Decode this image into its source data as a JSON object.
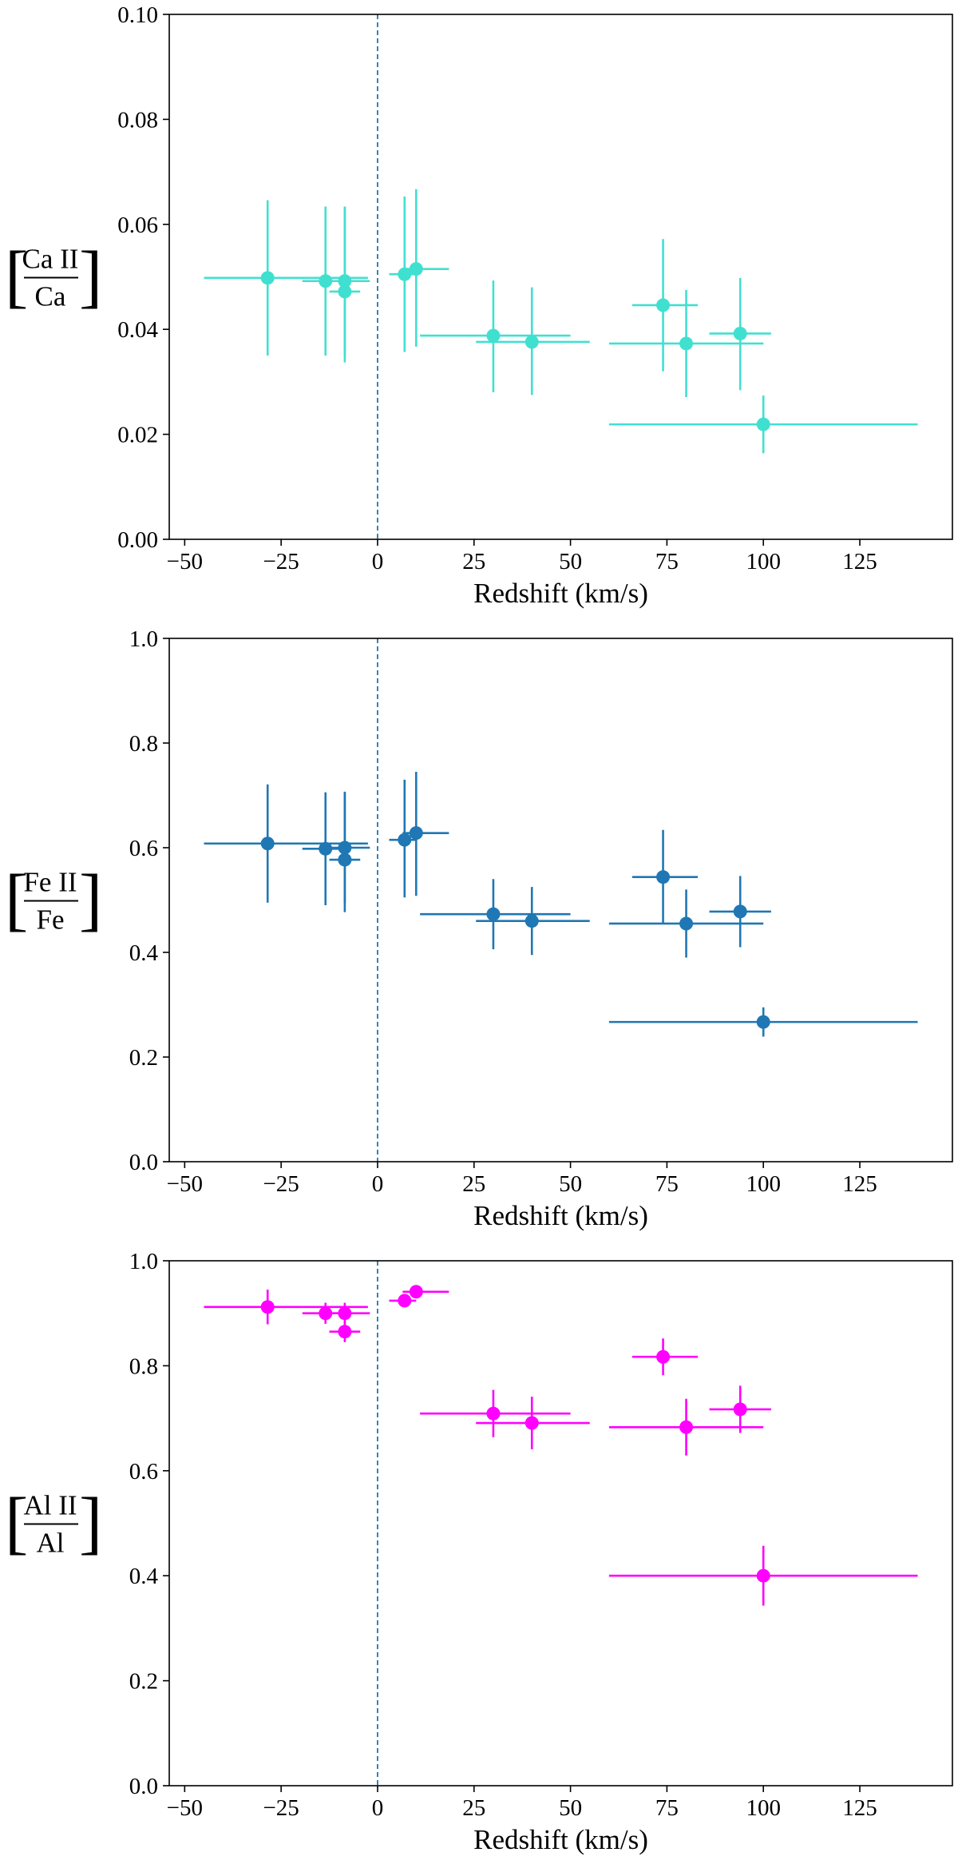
{
  "chart_data": [
    {
      "type": "scatter",
      "style": "errorbar",
      "color": "#40E0D0",
      "xlabel": "Redshift (km/s)",
      "ylabel": {
        "bracket_left": "[",
        "numerator": "Ca II",
        "denominator": "Ca",
        "bracket_right": "]"
      },
      "xlim": [
        -54,
        149
      ],
      "ylim": [
        0,
        0.1
      ],
      "xticks": [
        -50,
        -25,
        0,
        25,
        50,
        75,
        100,
        125
      ],
      "xtick_labels": [
        "−50",
        "−25",
        "0",
        "25",
        "50",
        "75",
        "100",
        "125"
      ],
      "yticks": [
        0,
        0.02,
        0.04,
        0.06,
        0.08,
        0.1
      ],
      "ytick_labels": [
        "0.00",
        "0.02",
        "0.04",
        "0.06",
        "0.08",
        "0.10"
      ],
      "reference_line": {
        "x": 0,
        "style": "dashed",
        "color": "#1f77b4"
      },
      "points": [
        {
          "x": -28.5,
          "y": 0.0498,
          "xerr": [
            16.5,
            26
          ],
          "yerr": [
            0.0148,
            0.0148
          ]
        },
        {
          "x": -13.5,
          "y": 0.0492,
          "xerr": [
            6,
            6
          ],
          "yerr": [
            0.0142,
            0.0142
          ]
        },
        {
          "x": -8.5,
          "y": 0.0492,
          "xerr": [
            6,
            6.5
          ],
          "yerr": [
            0.0142,
            0.0142
          ]
        },
        {
          "x": -8.5,
          "y": 0.0472,
          "xerr": [
            4,
            4
          ],
          "yerr": [
            0.0135,
            0.0162
          ]
        },
        {
          "x": 7,
          "y": 0.0505,
          "xerr": [
            4,
            3
          ],
          "yerr": [
            0.0148,
            0.0148
          ]
        },
        {
          "x": 10,
          "y": 0.0515,
          "xerr": [
            3.5,
            8.5
          ],
          "yerr": [
            0.0148,
            0.0152
          ]
        },
        {
          "x": 30,
          "y": 0.0388,
          "xerr": [
            19,
            20
          ],
          "yerr": [
            0.0108,
            0.0105
          ]
        },
        {
          "x": 40,
          "y": 0.0376,
          "xerr": [
            14.5,
            15
          ],
          "yerr": [
            0.0101,
            0.0104
          ]
        },
        {
          "x": 74,
          "y": 0.0446,
          "xerr": [
            8,
            9
          ],
          "yerr": [
            0.0126,
            0.0126
          ]
        },
        {
          "x": 80,
          "y": 0.0373,
          "xerr": [
            20,
            20
          ],
          "yerr": [
            0.0102,
            0.0102
          ]
        },
        {
          "x": 94,
          "y": 0.0392,
          "xerr": [
            8,
            8
          ],
          "yerr": [
            0.0108,
            0.0106
          ]
        },
        {
          "x": 100,
          "y": 0.0219,
          "xerr": [
            40,
            40
          ],
          "yerr": [
            0.0055,
            0.0055
          ]
        }
      ]
    },
    {
      "type": "scatter",
      "style": "errorbar",
      "color": "#1f77b4",
      "xlabel": "Redshift (km/s)",
      "ylabel": {
        "bracket_left": "[",
        "numerator": "Fe II",
        "denominator": "Fe",
        "bracket_right": "]"
      },
      "xlim": [
        -54,
        149
      ],
      "ylim": [
        0,
        1
      ],
      "xticks": [
        -50,
        -25,
        0,
        25,
        50,
        75,
        100,
        125
      ],
      "xtick_labels": [
        "−50",
        "−25",
        "0",
        "25",
        "50",
        "75",
        "100",
        "125"
      ],
      "yticks": [
        0,
        0.2,
        0.4,
        0.6,
        0.8,
        1.0
      ],
      "ytick_labels": [
        "0.0",
        "0.2",
        "0.4",
        "0.6",
        "0.8",
        "1.0"
      ],
      "reference_line": {
        "x": 0,
        "style": "dashed",
        "color": "#1f77b4"
      },
      "points": [
        {
          "x": -28.5,
          "y": 0.608,
          "xerr": [
            16.5,
            26
          ],
          "yerr": [
            0.113,
            0.113
          ]
        },
        {
          "x": -13.5,
          "y": 0.598,
          "xerr": [
            6,
            6
          ],
          "yerr": [
            0.108,
            0.108
          ]
        },
        {
          "x": -8.5,
          "y": 0.6,
          "xerr": [
            6,
            6.5
          ],
          "yerr": [
            0.105,
            0.105
          ]
        },
        {
          "x": -8.5,
          "y": 0.577,
          "xerr": [
            4,
            4
          ],
          "yerr": [
            0.1,
            0.13
          ]
        },
        {
          "x": 7,
          "y": 0.615,
          "xerr": [
            4,
            3
          ],
          "yerr": [
            0.11,
            0.115
          ]
        },
        {
          "x": 10,
          "y": 0.628,
          "xerr": [
            3.5,
            8.5
          ],
          "yerr": [
            0.12,
            0.117
          ]
        },
        {
          "x": 30,
          "y": 0.473,
          "xerr": [
            19,
            20
          ],
          "yerr": [
            0.067,
            0.067
          ]
        },
        {
          "x": 40,
          "y": 0.46,
          "xerr": [
            14.5,
            15
          ],
          "yerr": [
            0.065,
            0.065
          ]
        },
        {
          "x": 74,
          "y": 0.544,
          "xerr": [
            8,
            9
          ],
          "yerr": [
            0.09,
            0.09
          ]
        },
        {
          "x": 80,
          "y": 0.455,
          "xerr": [
            20,
            20
          ],
          "yerr": [
            0.065,
            0.065
          ]
        },
        {
          "x": 94,
          "y": 0.478,
          "xerr": [
            8,
            8
          ],
          "yerr": [
            0.068,
            0.068
          ]
        },
        {
          "x": 100,
          "y": 0.267,
          "xerr": [
            40,
            40
          ],
          "yerr": [
            0.028,
            0.028
          ]
        }
      ]
    },
    {
      "type": "scatter",
      "style": "errorbar",
      "color": "#FF00FF",
      "xlabel": "Redshift (km/s)",
      "ylabel": {
        "bracket_left": "[",
        "numerator": "Al II",
        "denominator": "Al",
        "bracket_right": "]"
      },
      "xlim": [
        -54,
        149
      ],
      "ylim": [
        0,
        1
      ],
      "xticks": [
        -50,
        -25,
        0,
        25,
        50,
        75,
        100,
        125
      ],
      "xtick_labels": [
        "−50",
        "−25",
        "0",
        "25",
        "50",
        "75",
        "100",
        "125"
      ],
      "yticks": [
        0,
        0.2,
        0.4,
        0.6,
        0.8,
        1.0
      ],
      "ytick_labels": [
        "0.0",
        "0.2",
        "0.4",
        "0.6",
        "0.8",
        "1.0"
      ],
      "reference_line": {
        "x": 0,
        "style": "dashed",
        "color": "#1f77b4"
      },
      "points": [
        {
          "x": -28.5,
          "y": 0.912,
          "xerr": [
            16.5,
            26
          ],
          "yerr": [
            0.033,
            0.033
          ]
        },
        {
          "x": -13.5,
          "y": 0.9,
          "xerr": [
            6,
            6
          ],
          "yerr": [
            0.02,
            0.02
          ]
        },
        {
          "x": -8.5,
          "y": 0.9,
          "xerr": [
            6,
            6.5
          ],
          "yerr": [
            0.02,
            0.02
          ]
        },
        {
          "x": -8.5,
          "y": 0.865,
          "xerr": [
            4,
            4
          ],
          "yerr": [
            0.02,
            0.02
          ]
        },
        {
          "x": 7,
          "y": 0.924,
          "xerr": [
            4,
            3
          ],
          "yerr": [
            0.012,
            0.012
          ]
        },
        {
          "x": 10,
          "y": 0.941,
          "xerr": [
            3.5,
            8.5
          ],
          "yerr": [
            0.012,
            0.012
          ]
        },
        {
          "x": 30,
          "y": 0.709,
          "xerr": [
            19,
            20
          ],
          "yerr": [
            0.045,
            0.045
          ]
        },
        {
          "x": 40,
          "y": 0.691,
          "xerr": [
            14.5,
            15
          ],
          "yerr": [
            0.05,
            0.05
          ]
        },
        {
          "x": 74,
          "y": 0.817,
          "xerr": [
            8,
            9
          ],
          "yerr": [
            0.035,
            0.035
          ]
        },
        {
          "x": 80,
          "y": 0.683,
          "xerr": [
            20,
            20
          ],
          "yerr": [
            0.054,
            0.054
          ]
        },
        {
          "x": 94,
          "y": 0.717,
          "xerr": [
            8,
            8
          ],
          "yerr": [
            0.045,
            0.045
          ]
        },
        {
          "x": 100,
          "y": 0.4,
          "xerr": [
            40,
            40
          ],
          "yerr": [
            0.057,
            0.057
          ]
        }
      ]
    }
  ]
}
